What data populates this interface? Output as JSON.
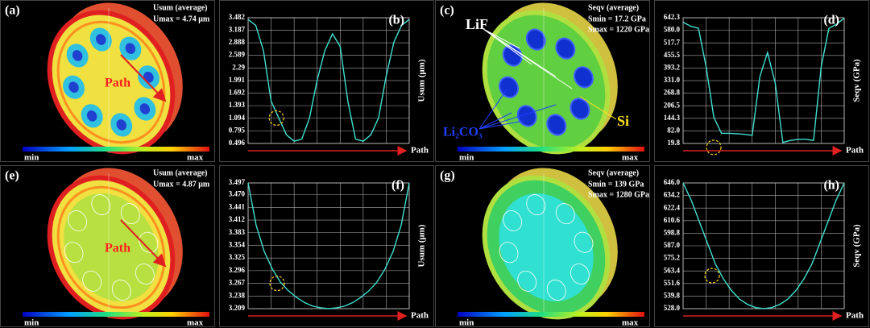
{
  "chart_data": [
    {
      "type": "line",
      "label": "(b)",
      "ylabel": "Usum (μm)",
      "xlabel": "Path",
      "categories": [
        null,
        null,
        null,
        null,
        null,
        null,
        null,
        null,
        null,
        null,
        null,
        null,
        null,
        null,
        null,
        null,
        null,
        null,
        null,
        null,
        null,
        null
      ],
      "series": [
        {
          "color": "#40e0d0",
          "values": [
            3.44,
            3.3,
            2.7,
            1.5,
            1.1,
            0.7,
            0.55,
            0.6,
            1.1,
            2.0,
            2.7,
            3.1,
            2.8,
            1.5,
            0.6,
            0.55,
            0.7,
            1.1,
            2.1,
            2.9,
            3.3,
            3.44
          ]
        }
      ],
      "ylim": [
        0.496,
        3.482
      ],
      "yticks": [
        0.496,
        0.795,
        1.094,
        1.393,
        1.692,
        1.991,
        2.29,
        2.589,
        2.888,
        3.187,
        3.482
      ],
      "grid": true
    },
    {
      "type": "line",
      "label": "(d)",
      "ylabel": "Seqv (GPa)",
      "xlabel": "Path",
      "categories": [
        null,
        null,
        null,
        null,
        null,
        null,
        null,
        null,
        null,
        null,
        null,
        null,
        null,
        null,
        null,
        null,
        null,
        null,
        null,
        null,
        null,
        null
      ],
      "series": [
        {
          "color": "#40e0d0",
          "values": [
            620,
            600,
            590,
            400,
            150,
            70,
            70,
            68,
            65,
            60,
            350,
            470,
            320,
            25,
            35,
            40,
            40,
            35,
            400,
            590,
            610,
            640
          ]
        }
      ],
      "ylim": [
        19.8,
        642.3
      ],
      "yticks": [
        19.8,
        {
          "value": 82,
          "label": "82.0"
        },
        144.3,
        206.5,
        268.8,
        {
          "value": 331,
          "label": "331.0"
        },
        393.2,
        455.5,
        517.7,
        {
          "value": 580,
          "label": "580.0"
        },
        642.3
      ],
      "grid": true
    },
    {
      "type": "line",
      "label": "(f)",
      "ylabel": "Usum (μm)",
      "xlabel": "Path",
      "categories": [
        null,
        null,
        null,
        null,
        null,
        null,
        null,
        null,
        null,
        null,
        null,
        null,
        null,
        null,
        null,
        null,
        null,
        null,
        null,
        null,
        null
      ],
      "series": [
        {
          "color": "#40e0d0",
          "values": [
            3.497,
            3.4,
            3.34,
            3.3,
            3.27,
            3.25,
            3.235,
            3.223,
            3.215,
            3.211,
            3.209,
            3.211,
            3.215,
            3.223,
            3.235,
            3.25,
            3.27,
            3.3,
            3.34,
            3.4,
            3.497
          ]
        }
      ],
      "ylim": [
        3.209,
        3.497
      ],
      "yticks": [
        3.209,
        3.238,
        3.267,
        3.296,
        3.325,
        3.354,
        3.383,
        3.412,
        3.441,
        {
          "value": 3.47,
          "label": "3.470"
        },
        3.497
      ],
      "grid": true
    },
    {
      "type": "line",
      "label": "(h)",
      "ylabel": "Seqv (GPa)",
      "xlabel": "Path",
      "categories": [
        null,
        null,
        null,
        null,
        null,
        null,
        null,
        null,
        null,
        null,
        null,
        null,
        null,
        null,
        null,
        null,
        null,
        null,
        null,
        null,
        null
      ],
      "series": [
        {
          "color": "#40e0d0",
          "values": [
            646,
            630,
            610,
            590,
            570,
            556,
            545,
            537,
            532,
            529,
            528,
            529,
            532,
            537,
            545,
            556,
            570,
            590,
            610,
            630,
            646
          ]
        }
      ],
      "ylim": [
        528,
        646
      ],
      "yticks": [
        {
          "value": 528,
          "label": "528.0"
        },
        539.8,
        551.6,
        563.4,
        575.2,
        {
          "value": 587,
          "label": "587.0"
        },
        598.8,
        610.6,
        622.4,
        634.2,
        {
          "value": 646,
          "label": "646.0"
        }
      ],
      "grid": true
    }
  ],
  "images": [
    {
      "label": "(a)",
      "title": "Usum (average)",
      "stats": [
        "Umax = 4.74 μm"
      ],
      "annotations": [
        "Path"
      ],
      "min": "min",
      "max": "max"
    },
    {
      "label": "(c)",
      "title": "Seqv (average)",
      "stats": [
        "Smin = 17.2 GPa",
        "Smax = 1220 GPa"
      ],
      "annotations": [
        "LiF",
        "Li₂CO₃",
        "Si"
      ],
      "min": "min",
      "max": "max"
    },
    {
      "label": "(e)",
      "title": "Usum (average)",
      "stats": [
        "Umax = 4.87 μm"
      ],
      "annotations": [
        "Path"
      ],
      "min": "min",
      "max": "max"
    },
    {
      "label": "(g)",
      "title": "Seqv (average)",
      "stats": [
        "Smin = 139 GPa",
        "Smax = 1280 GPa"
      ],
      "annotations": [],
      "min": "min",
      "max": "max"
    }
  ]
}
